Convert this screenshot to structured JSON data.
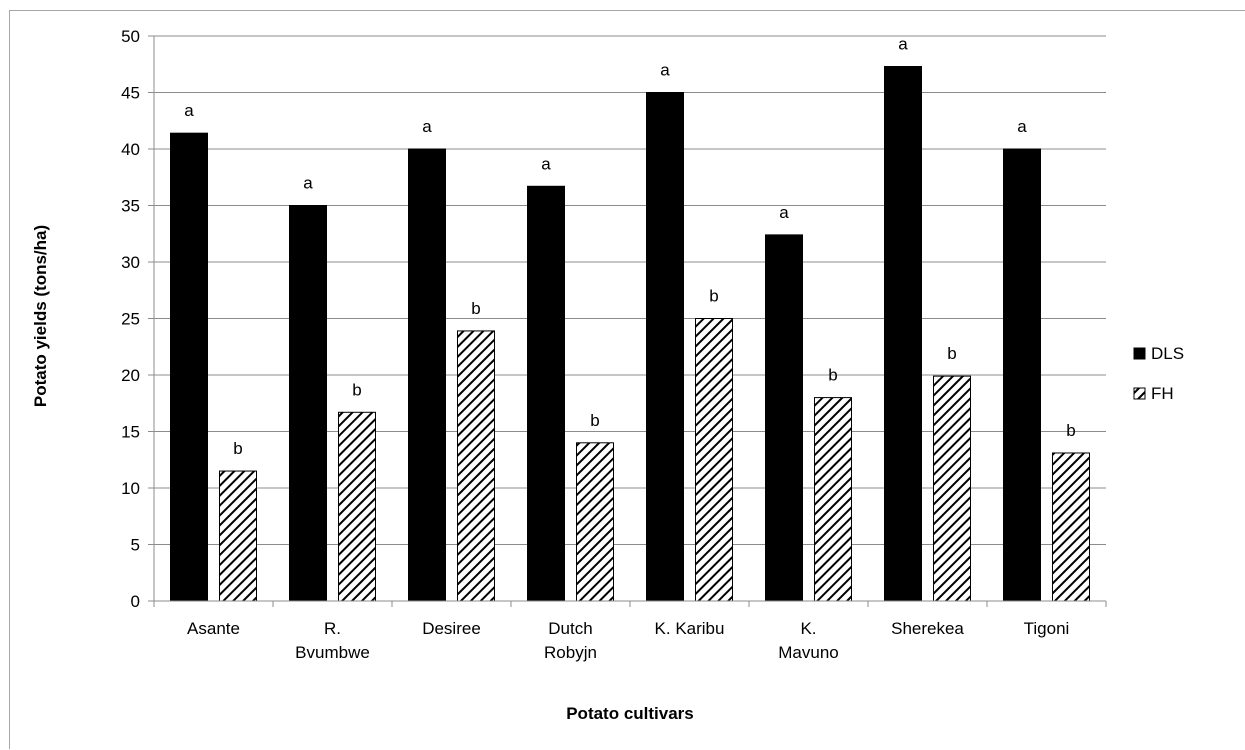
{
  "chart_data": {
    "type": "bar",
    "title": "",
    "xlabel": "Potato cultivars",
    "ylabel": "Potato yields (tons/ha)",
    "ylim": [
      0,
      50
    ],
    "ytick_step": 5,
    "grid": true,
    "legend_position": "right",
    "categories": [
      [
        "Asante"
      ],
      [
        "R.",
        "Bvumbwe"
      ],
      [
        "Desiree"
      ],
      [
        "Dutch",
        "Robyjn"
      ],
      [
        "K. Karibu"
      ],
      [
        "K.",
        "Mavuno"
      ],
      [
        "Sherekea"
      ],
      [
        "Tigoni"
      ]
    ],
    "series": [
      {
        "name": "DLS",
        "fill": "solid",
        "color": "#000000",
        "values": [
          41.4,
          35.0,
          40.0,
          36.7,
          45.0,
          32.4,
          47.3,
          40.0
        ],
        "labels": [
          "a",
          "a",
          "a",
          "a",
          "a",
          "a",
          "a",
          "a"
        ]
      },
      {
        "name": "FH",
        "fill": "hatched",
        "color": "#000000",
        "values": [
          11.5,
          16.7,
          23.9,
          14.0,
          25.0,
          18.0,
          19.9,
          13.1
        ],
        "labels": [
          "b",
          "b",
          "b",
          "b",
          "b",
          "b",
          "b",
          "b"
        ]
      }
    ]
  }
}
